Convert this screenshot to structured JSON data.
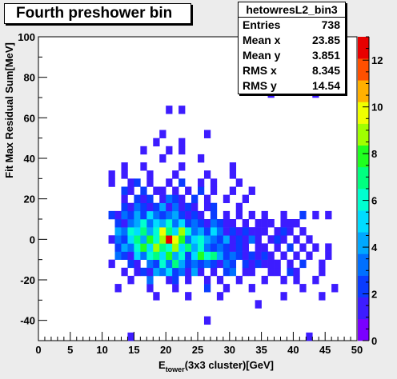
{
  "title": "Fourth preshower bin",
  "stats": {
    "name": "hetowresL2_bin3",
    "rows": [
      {
        "label": "Entries",
        "value": "738"
      },
      {
        "label": "Mean x",
        "value": "23.85"
      },
      {
        "label": "Mean y",
        "value": "3.851"
      },
      {
        "label": "RMS x",
        "value": "8.345"
      },
      {
        "label": "RMS y",
        "value": "14.54"
      }
    ]
  },
  "chart_data": {
    "type": "heatmap",
    "xlabel_main": "E",
    "xlabel_sub": "tower",
    "xlabel_rest": "(3x3 cluster)[GeV]",
    "ylabel": "Fit Max Residual Sum[MeV]",
    "xlim": [
      0,
      50
    ],
    "ylim": [
      -50,
      100
    ],
    "zlim": [
      0,
      13
    ],
    "bin_size": [
      1,
      4
    ],
    "x_ticks": [
      "0",
      "5",
      "10",
      "15",
      "20",
      "25",
      "30",
      "35",
      "40",
      "45",
      "50"
    ],
    "y_ticks": [
      "-40",
      "-20",
      "0",
      "20",
      "40",
      "60",
      "80",
      "100"
    ],
    "z_ticks": [
      "0",
      "2",
      "4",
      "6",
      "8",
      "10",
      "12"
    ],
    "palette": [
      "#7a00ff",
      "#3d1cff",
      "#0a3cff",
      "#0070ff",
      "#00a8ff",
      "#00dcff",
      "#00ffd0",
      "#00ff80",
      "#20ff20",
      "#a0ff00",
      "#f0ff00",
      "#ffb000",
      "#ff5000",
      "#e80000"
    ],
    "cells": [
      [
        14,
        -50,
        1
      ],
      [
        42,
        -50,
        1
      ],
      [
        26,
        -42,
        1
      ],
      [
        34,
        -34,
        1
      ],
      [
        18,
        -30,
        1
      ],
      [
        23,
        -30,
        1
      ],
      [
        28,
        -30,
        1
      ],
      [
        38,
        -30,
        1
      ],
      [
        44,
        -30,
        1
      ],
      [
        12,
        -26,
        1
      ],
      [
        17,
        -26,
        1
      ],
      [
        21,
        -26,
        1
      ],
      [
        26,
        -26,
        2
      ],
      [
        29,
        -26,
        1
      ],
      [
        33,
        -26,
        1
      ],
      [
        41,
        -26,
        1
      ],
      [
        46,
        -26,
        1
      ],
      [
        14,
        -22,
        1
      ],
      [
        17,
        -22,
        3
      ],
      [
        20,
        -22,
        1
      ],
      [
        21,
        -22,
        2
      ],
      [
        23,
        -22,
        1
      ],
      [
        26,
        -22,
        1
      ],
      [
        28,
        -22,
        1
      ],
      [
        31,
        -22,
        1
      ],
      [
        35,
        -22,
        1
      ],
      [
        38,
        -22,
        1
      ],
      [
        40,
        -22,
        1
      ],
      [
        43,
        -22,
        1
      ],
      [
        13,
        -18,
        1
      ],
      [
        15,
        -18,
        1
      ],
      [
        16,
        -18,
        2
      ],
      [
        17,
        -18,
        1
      ],
      [
        18,
        -18,
        4
      ],
      [
        19,
        -18,
        3
      ],
      [
        20,
        -18,
        5
      ],
      [
        21,
        -18,
        2
      ],
      [
        22,
        -18,
        3
      ],
      [
        23,
        -18,
        1
      ],
      [
        24,
        -18,
        4
      ],
      [
        25,
        -18,
        1
      ],
      [
        27,
        -18,
        1
      ],
      [
        29,
        -18,
        2
      ],
      [
        30,
        -18,
        3
      ],
      [
        32,
        -18,
        1
      ],
      [
        33,
        -18,
        1
      ],
      [
        36,
        -18,
        1
      ],
      [
        37,
        -18,
        1
      ],
      [
        39,
        -18,
        2
      ],
      [
        40,
        -18,
        1
      ],
      [
        44,
        -18,
        1
      ],
      [
        11,
        -14,
        1
      ],
      [
        14,
        -14,
        2
      ],
      [
        15,
        -14,
        1
      ],
      [
        17,
        -14,
        3
      ],
      [
        18,
        -14,
        2
      ],
      [
        19,
        -14,
        6
      ],
      [
        20,
        -14,
        3
      ],
      [
        21,
        -14,
        7
      ],
      [
        22,
        -14,
        4
      ],
      [
        23,
        -14,
        2
      ],
      [
        24,
        -14,
        3
      ],
      [
        25,
        -14,
        2
      ],
      [
        26,
        -14,
        3
      ],
      [
        27,
        -14,
        2
      ],
      [
        28,
        -14,
        1
      ],
      [
        29,
        -14,
        3
      ],
      [
        30,
        -14,
        2
      ],
      [
        32,
        -14,
        2
      ],
      [
        33,
        -14,
        1
      ],
      [
        34,
        -14,
        2
      ],
      [
        35,
        -14,
        1
      ],
      [
        36,
        -14,
        1
      ],
      [
        37,
        -14,
        1
      ],
      [
        39,
        -14,
        1
      ],
      [
        41,
        -14,
        2
      ],
      [
        44,
        -14,
        1
      ],
      [
        12,
        -10,
        3
      ],
      [
        13,
        -10,
        2
      ],
      [
        14,
        -10,
        1
      ],
      [
        15,
        -10,
        5
      ],
      [
        16,
        -10,
        3
      ],
      [
        17,
        -10,
        6
      ],
      [
        18,
        -10,
        7
      ],
      [
        19,
        -10,
        5
      ],
      [
        20,
        -10,
        8
      ],
      [
        21,
        -10,
        4
      ],
      [
        22,
        -10,
        6
      ],
      [
        23,
        -10,
        2
      ],
      [
        24,
        -10,
        5
      ],
      [
        25,
        -10,
        8
      ],
      [
        26,
        -10,
        6
      ],
      [
        27,
        -10,
        7
      ],
      [
        28,
        -10,
        4
      ],
      [
        29,
        -10,
        2
      ],
      [
        30,
        -10,
        3
      ],
      [
        31,
        -10,
        2
      ],
      [
        32,
        -10,
        1
      ],
      [
        33,
        -10,
        2
      ],
      [
        34,
        -10,
        1
      ],
      [
        35,
        -10,
        2
      ],
      [
        36,
        -10,
        1
      ],
      [
        38,
        -10,
        1
      ],
      [
        40,
        -10,
        1
      ],
      [
        42,
        -10,
        1
      ],
      [
        45,
        -10,
        1
      ],
      [
        12,
        -6,
        2
      ],
      [
        13,
        -6,
        4
      ],
      [
        14,
        -6,
        3
      ],
      [
        15,
        -6,
        6
      ],
      [
        16,
        -6,
        8
      ],
      [
        17,
        -6,
        5
      ],
      [
        18,
        -6,
        9
      ],
      [
        19,
        -6,
        7
      ],
      [
        20,
        -6,
        6
      ],
      [
        21,
        -6,
        9
      ],
      [
        22,
        -6,
        5
      ],
      [
        23,
        -6,
        7
      ],
      [
        24,
        -6,
        4
      ],
      [
        25,
        -6,
        6
      ],
      [
        26,
        -6,
        3
      ],
      [
        27,
        -6,
        2
      ],
      [
        28,
        -6,
        3
      ],
      [
        29,
        -6,
        2
      ],
      [
        30,
        -6,
        1
      ],
      [
        31,
        -6,
        2
      ],
      [
        32,
        -6,
        1
      ],
      [
        34,
        -6,
        1
      ],
      [
        35,
        -6,
        1
      ],
      [
        37,
        -6,
        1
      ],
      [
        39,
        -6,
        2
      ],
      [
        41,
        -6,
        1
      ],
      [
        43,
        -6,
        1
      ],
      [
        45,
        -6,
        1
      ],
      [
        11,
        -2,
        1
      ],
      [
        12,
        -2,
        3
      ],
      [
        13,
        -2,
        2
      ],
      [
        14,
        -2,
        5
      ],
      [
        15,
        -2,
        7
      ],
      [
        16,
        -2,
        4
      ],
      [
        17,
        -2,
        8
      ],
      [
        18,
        -2,
        6
      ],
      [
        19,
        -2,
        9
      ],
      [
        20,
        -2,
        13
      ],
      [
        21,
        -2,
        10
      ],
      [
        22,
        -2,
        8
      ],
      [
        23,
        -2,
        3
      ],
      [
        24,
        -2,
        5
      ],
      [
        25,
        -2,
        6
      ],
      [
        26,
        -2,
        4
      ],
      [
        27,
        -2,
        3
      ],
      [
        28,
        -2,
        2
      ],
      [
        29,
        -2,
        4
      ],
      [
        30,
        -2,
        1
      ],
      [
        31,
        -2,
        2
      ],
      [
        32,
        -2,
        1
      ],
      [
        33,
        -2,
        3
      ],
      [
        34,
        -2,
        1
      ],
      [
        36,
        -2,
        1
      ],
      [
        37,
        -2,
        2
      ],
      [
        38,
        -2,
        1
      ],
      [
        40,
        -2,
        1
      ],
      [
        42,
        -2,
        1
      ],
      [
        12,
        2,
        4
      ],
      [
        13,
        2,
        3
      ],
      [
        14,
        2,
        6
      ],
      [
        15,
        2,
        5
      ],
      [
        16,
        2,
        7
      ],
      [
        17,
        2,
        4
      ],
      [
        18,
        2,
        6
      ],
      [
        19,
        2,
        10
      ],
      [
        20,
        2,
        7
      ],
      [
        21,
        2,
        5
      ],
      [
        22,
        2,
        9
      ],
      [
        23,
        2,
        6
      ],
      [
        24,
        2,
        3
      ],
      [
        25,
        2,
        4
      ],
      [
        26,
        2,
        2
      ],
      [
        27,
        2,
        5
      ],
      [
        28,
        2,
        3
      ],
      [
        29,
        2,
        1
      ],
      [
        30,
        2,
        2
      ],
      [
        31,
        2,
        1
      ],
      [
        32,
        2,
        2
      ],
      [
        33,
        2,
        1
      ],
      [
        34,
        2,
        1
      ],
      [
        35,
        2,
        1
      ],
      [
        37,
        2,
        1
      ],
      [
        38,
        2,
        2
      ],
      [
        39,
        2,
        1
      ],
      [
        41,
        2,
        1
      ],
      [
        12,
        6,
        2
      ],
      [
        13,
        6,
        1
      ],
      [
        14,
        6,
        3
      ],
      [
        15,
        6,
        4
      ],
      [
        16,
        6,
        6
      ],
      [
        17,
        6,
        3
      ],
      [
        18,
        6,
        5
      ],
      [
        19,
        6,
        4
      ],
      [
        20,
        6,
        6
      ],
      [
        21,
        6,
        3
      ],
      [
        22,
        6,
        5
      ],
      [
        23,
        6,
        2
      ],
      [
        24,
        6,
        3
      ],
      [
        25,
        6,
        2
      ],
      [
        26,
        6,
        1
      ],
      [
        27,
        6,
        3
      ],
      [
        28,
        6,
        2
      ],
      [
        29,
        6,
        1
      ],
      [
        30,
        6,
        1
      ],
      [
        32,
        6,
        1
      ],
      [
        34,
        6,
        1
      ],
      [
        35,
        6,
        1
      ],
      [
        36,
        6,
        1
      ],
      [
        38,
        6,
        1
      ],
      [
        39,
        6,
        1
      ],
      [
        40,
        6,
        1
      ],
      [
        11,
        10,
        2
      ],
      [
        12,
        10,
        1
      ],
      [
        13,
        10,
        3
      ],
      [
        14,
        10,
        2
      ],
      [
        15,
        10,
        4
      ],
      [
        16,
        10,
        2
      ],
      [
        17,
        10,
        5
      ],
      [
        18,
        10,
        3
      ],
      [
        19,
        10,
        2
      ],
      [
        20,
        10,
        3
      ],
      [
        21,
        10,
        4
      ],
      [
        22,
        10,
        2
      ],
      [
        23,
        10,
        1
      ],
      [
        24,
        10,
        2
      ],
      [
        25,
        10,
        1
      ],
      [
        27,
        10,
        2
      ],
      [
        29,
        10,
        1
      ],
      [
        31,
        10,
        1
      ],
      [
        33,
        10,
        1
      ],
      [
        35,
        10,
        1
      ],
      [
        38,
        10,
        1
      ],
      [
        41,
        10,
        2
      ],
      [
        43,
        10,
        1
      ],
      [
        45,
        10,
        1
      ],
      [
        13,
        14,
        2
      ],
      [
        14,
        14,
        1
      ],
      [
        15,
        14,
        3
      ],
      [
        16,
        14,
        2
      ],
      [
        17,
        14,
        1
      ],
      [
        18,
        14,
        2
      ],
      [
        19,
        14,
        4
      ],
      [
        20,
        14,
        1
      ],
      [
        21,
        14,
        3
      ],
      [
        22,
        14,
        1
      ],
      [
        23,
        14,
        2
      ],
      [
        24,
        14,
        1
      ],
      [
        26,
        14,
        1
      ],
      [
        27,
        14,
        2
      ],
      [
        31,
        14,
        1
      ],
      [
        13,
        18,
        1
      ],
      [
        15,
        18,
        2
      ],
      [
        16,
        18,
        1
      ],
      [
        17,
        18,
        2
      ],
      [
        19,
        18,
        1
      ],
      [
        20,
        18,
        3
      ],
      [
        21,
        18,
        2
      ],
      [
        22,
        18,
        1
      ],
      [
        24,
        18,
        2
      ],
      [
        26,
        18,
        1
      ],
      [
        29,
        18,
        1
      ],
      [
        32,
        18,
        1
      ],
      [
        13,
        22,
        2
      ],
      [
        14,
        22,
        1
      ],
      [
        16,
        22,
        2
      ],
      [
        18,
        22,
        1
      ],
      [
        19,
        22,
        1
      ],
      [
        21,
        22,
        1
      ],
      [
        23,
        22,
        1
      ],
      [
        25,
        22,
        2
      ],
      [
        27,
        22,
        1
      ],
      [
        30,
        22,
        1
      ],
      [
        33,
        22,
        1
      ],
      [
        11,
        26,
        1
      ],
      [
        14,
        26,
        1
      ],
      [
        15,
        26,
        2
      ],
      [
        17,
        26,
        1
      ],
      [
        20,
        26,
        1
      ],
      [
        22,
        26,
        2
      ],
      [
        25,
        26,
        1
      ],
      [
        27,
        26,
        1
      ],
      [
        31,
        26,
        1
      ],
      [
        11,
        30,
        1
      ],
      [
        13,
        30,
        1
      ],
      [
        17,
        30,
        1
      ],
      [
        21,
        30,
        1
      ],
      [
        26,
        30,
        1
      ],
      [
        30,
        30,
        1
      ],
      [
        13,
        34,
        1
      ],
      [
        16,
        34,
        1
      ],
      [
        22,
        34,
        1
      ],
      [
        30,
        34,
        1
      ],
      [
        19,
        38,
        1
      ],
      [
        25,
        38,
        1
      ],
      [
        16,
        42,
        1
      ],
      [
        20,
        42,
        1
      ],
      [
        22,
        42,
        1
      ],
      [
        18,
        46,
        1
      ],
      [
        22,
        46,
        1
      ],
      [
        19,
        50,
        1
      ],
      [
        26,
        50,
        1
      ],
      [
        20,
        62,
        1
      ],
      [
        22,
        62,
        1
      ],
      [
        36,
        70,
        1
      ],
      [
        43,
        70,
        1
      ]
    ]
  }
}
